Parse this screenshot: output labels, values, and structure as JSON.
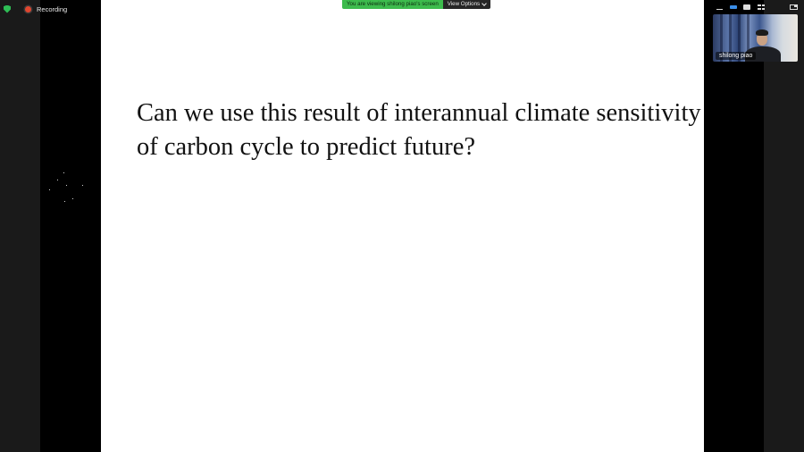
{
  "meeting": {
    "recording_label": "Recording",
    "viewing_message": "You are viewing shilong piao's screen",
    "view_options_label": "View Options"
  },
  "slide": {
    "line1": "Can we use this result of interannual climate sensitivity",
    "line2": "of carbon cycle to predict future?"
  },
  "participant": {
    "name": "shilong piao"
  },
  "icons": {
    "security": "shield-icon",
    "recording": "record-dot-icon",
    "view_options": "chevron-down-icon",
    "layout": [
      "minimize-icon",
      "strip-view-icon",
      "speaker-view-icon",
      "gallery-view-icon",
      "picture-in-picture-icon"
    ]
  },
  "colors": {
    "accent_green": "#3dbb4d",
    "record_red": "#e0462f",
    "strip_blue": "#3b8ee8"
  }
}
